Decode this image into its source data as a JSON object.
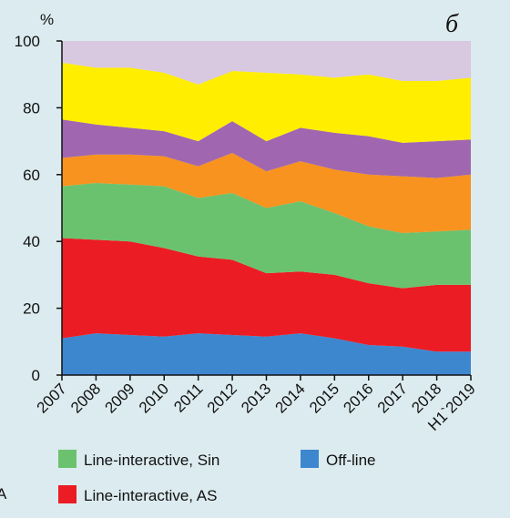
{
  "chart_data": {
    "type": "area",
    "stacked": true,
    "panel_label": "б",
    "ylabel": "%",
    "ylim": [
      0,
      100
    ],
    "yticks": [
      0,
      20,
      40,
      60,
      80,
      100
    ],
    "categories": [
      "2007",
      "2008",
      "2009",
      "2010",
      "2011",
      "2012",
      "2013",
      "2014",
      "2015",
      "2016",
      "2017",
      "2018",
      "H1`2019"
    ],
    "series": [
      {
        "name": "Off-line",
        "color": "#3d87cf",
        "values": [
          11,
          12.5,
          12,
          11.5,
          12.5,
          12,
          11.5,
          12.5,
          11,
          9,
          8.5,
          7,
          7
        ]
      },
      {
        "name": "Line-interactive, AS",
        "color": "#ec1c24",
        "values": [
          30,
          28,
          28,
          26.5,
          23,
          22.5,
          19,
          18.5,
          19,
          18.5,
          17.5,
          20,
          20
        ]
      },
      {
        "color": "#6bc26e",
        "values": [
          15.5,
          17,
          17,
          18.5,
          17.5,
          20,
          19.5,
          21,
          18.5,
          17,
          16.5,
          16,
          16.5
        ]
      },
      {
        "color": "#f7931e",
        "values": [
          8.5,
          8.5,
          9,
          9,
          9.5,
          12,
          11,
          12,
          13,
          15.5,
          17,
          16,
          16.5
        ]
      },
      {
        "color": "#a066b0",
        "values": [
          11.5,
          9,
          8,
          7.5,
          7.5,
          9.5,
          9,
          10,
          11,
          11.5,
          10,
          11,
          10.5
        ]
      },
      {
        "color": "#ffee00",
        "values": [
          17,
          17,
          18,
          17.5,
          17,
          15,
          20.5,
          16,
          16.5,
          18.5,
          18.5,
          18,
          18.5
        ]
      },
      {
        "color": "#d8c8e0",
        "values": [
          6.5,
          8,
          8,
          9.5,
          13,
          9,
          9.5,
          10,
          11,
          10,
          12,
          12,
          11
        ]
      }
    ],
    "legend": [
      {
        "label": "Line-interactive, Sin",
        "color": "#6bc26e"
      },
      {
        "label": "Off-line",
        "color": "#3d87cf"
      },
      {
        "label": "Line-interactive, AS",
        "color": "#ec1c24"
      }
    ],
    "legend_partial_text": "A",
    "grid": false
  }
}
